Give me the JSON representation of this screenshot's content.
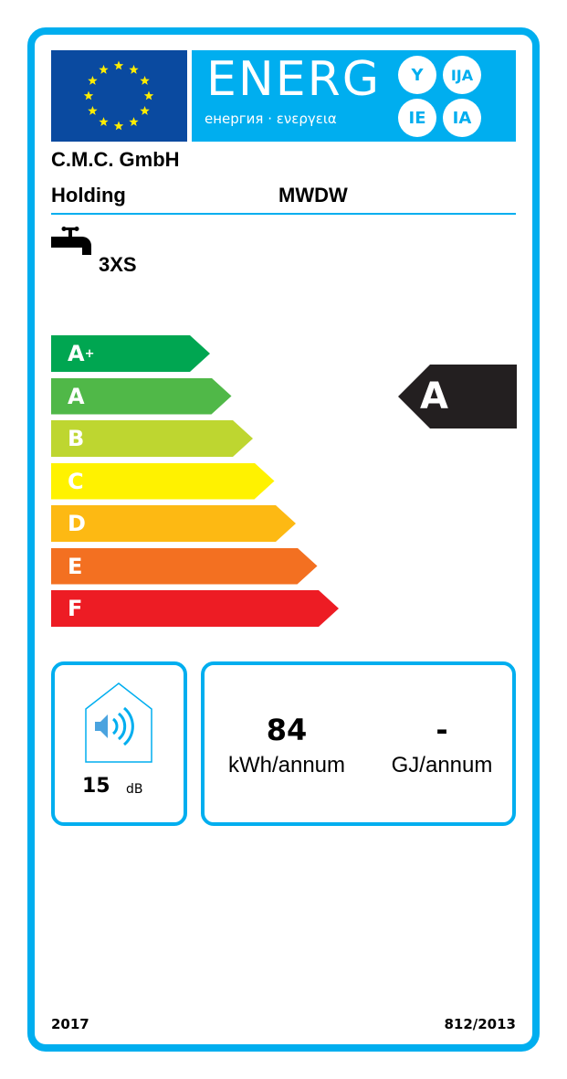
{
  "header": {
    "logo_word": "ENERG",
    "logo_subtitle": "енергия · ενεργεια",
    "logo_suffixes": [
      "Y",
      "IJA",
      "IE",
      "IA"
    ],
    "supplier": "C.M.C. GmbH",
    "supplier_line2": "Holding",
    "model": "MWDW"
  },
  "load_profile": {
    "icon": "tap-icon",
    "value": "3XS"
  },
  "scale": {
    "classes": [
      {
        "label": "A",
        "sup": "+",
        "color": "#00a651"
      },
      {
        "label": "A",
        "sup": "",
        "color": "#50b848"
      },
      {
        "label": "B",
        "sup": "",
        "color": "#bed630"
      },
      {
        "label": "C",
        "sup": "",
        "color": "#fff200"
      },
      {
        "label": "D",
        "sup": "",
        "color": "#fdb913"
      },
      {
        "label": "E",
        "sup": "",
        "color": "#f37021"
      },
      {
        "label": "F",
        "sup": "",
        "color": "#ed1c24"
      }
    ],
    "rating": "A"
  },
  "noise": {
    "icon": "house-speaker-icon",
    "value": "15",
    "unit": "dB"
  },
  "consumption": {
    "electric_value": "84",
    "electric_unit": "kWh/annum",
    "fuel_value": "-",
    "fuel_unit": "GJ/annum"
  },
  "footer": {
    "year": "2017",
    "regulation": "812/2013"
  },
  "colors": {
    "frame": "#00aeef",
    "flag": "#0a4aa0",
    "stars": "#ffed00",
    "rating_arrow": "#231f20"
  }
}
